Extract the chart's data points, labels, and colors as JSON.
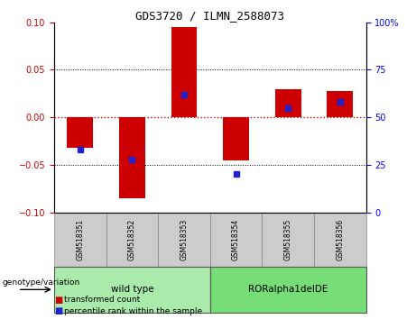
{
  "title": "GDS3720 / ILMN_2588073",
  "samples": [
    "GSM518351",
    "GSM518352",
    "GSM518353",
    "GSM518354",
    "GSM518355",
    "GSM518356"
  ],
  "transformed_count": [
    -0.032,
    -0.085,
    0.095,
    -0.045,
    0.03,
    0.028
  ],
  "percentile_rank": [
    33,
    28,
    62,
    20,
    55,
    58
  ],
  "ylim_left": [
    -0.1,
    0.1
  ],
  "ylim_right": [
    0,
    100
  ],
  "yticks_left": [
    -0.1,
    -0.05,
    0,
    0.05,
    0.1
  ],
  "yticks_right": [
    0,
    25,
    50,
    75,
    100
  ],
  "bar_color": "#cc0000",
  "dot_color": "#2222cc",
  "hline_color": "#cc0000",
  "grid_color": "#000000",
  "bg_plot": "#ffffff",
  "bg_xticklabel": "#cccccc",
  "bg_wildtype": "#aaeaaa",
  "bg_mutant": "#77dd77",
  "wildtype_label": "wild type",
  "mutant_label": "RORalpha1delDE",
  "genotype_label": "genotype/variation",
  "legend_red": "transformed count",
  "legend_blue": "percentile rank within the sample",
  "wildtype_indices": [
    0,
    1,
    2
  ],
  "mutant_indices": [
    3,
    4,
    5
  ],
  "bar_width": 0.5
}
